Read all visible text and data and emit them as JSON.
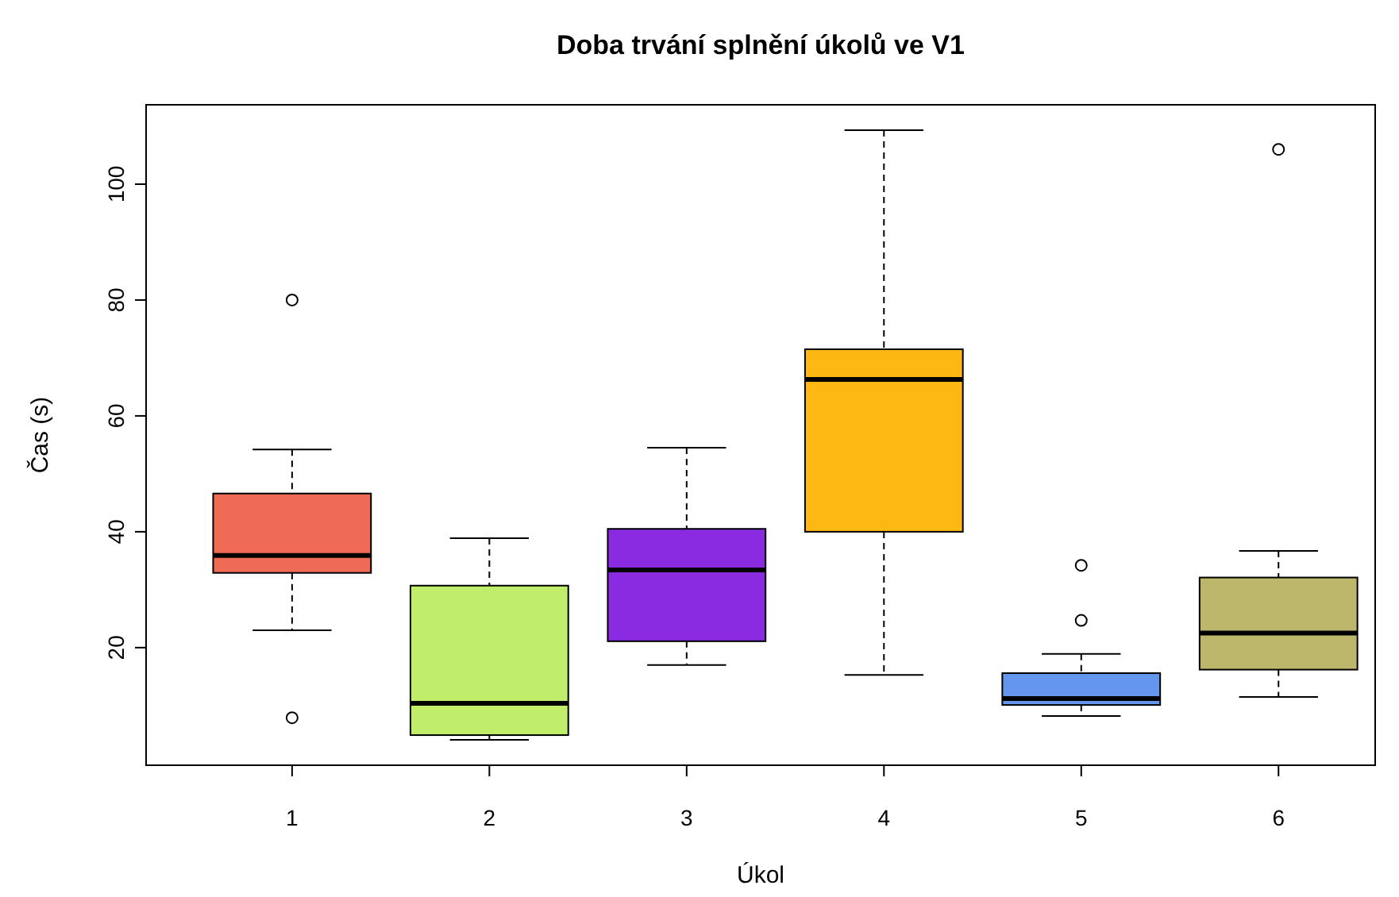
{
  "chart_data": {
    "type": "box",
    "title": "Doba trvání splnění úkolů ve V1",
    "xlabel": "Úkol",
    "ylabel": "Čas (s)",
    "categories": [
      "1",
      "2",
      "3",
      "4",
      "5",
      "6"
    ],
    "colors": [
      "#f06b55",
      "#c0ee6a",
      "#8a2be2",
      "#fdb813",
      "#6496ee",
      "#bdb76b"
    ],
    "boxes": [
      {
        "low": 23.0,
        "q1": 32.9,
        "median": 35.9,
        "q3": 46.6,
        "high": 54.2,
        "outliers": [
          80.0,
          7.9
        ]
      },
      {
        "low": 4.1,
        "q1": 4.9,
        "median": 10.4,
        "q3": 30.7,
        "high": 38.9
      },
      {
        "low": 17.0,
        "q1": 21.1,
        "median": 33.4,
        "q3": 40.5,
        "high": 54.5
      },
      {
        "low": 15.3,
        "q1": 40.0,
        "median": 66.3,
        "q3": 71.5,
        "high": 109.3
      },
      {
        "low": 8.2,
        "q1": 10.1,
        "median": 11.2,
        "q3": 15.6,
        "high": 18.9,
        "outliers": [
          34.2,
          24.7
        ]
      },
      {
        "low": 11.5,
        "q1": 16.2,
        "median": 22.5,
        "q3": 32.1,
        "high": 36.7,
        "outliers": [
          106.0
        ]
      }
    ],
    "ylim": [
      -0.3,
      113.7
    ],
    "yticks": [
      20,
      40,
      60,
      80,
      100
    ],
    "grid": false,
    "line_style": "dashed"
  }
}
